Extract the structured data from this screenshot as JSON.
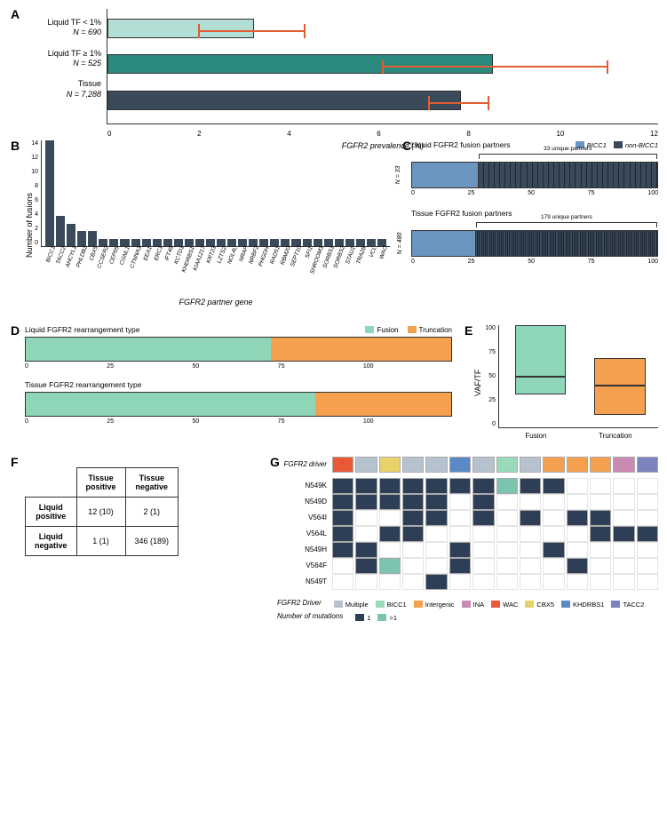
{
  "panel_a": {
    "label": "A",
    "xlabel": "FGFR2 prevalence (%)",
    "xlim": [
      0,
      12
    ],
    "xticks": [
      0,
      2,
      4,
      6,
      8,
      10,
      12
    ],
    "background_color": "#ffffff",
    "error_color": "#e25d33",
    "categories": [
      {
        "label_l1": "Liquid TF < 1%",
        "label_l2": "N = 690",
        "value": 3.2,
        "err_lo": 2.0,
        "err_hi": 4.3,
        "color": "#b3ded5"
      },
      {
        "label_l1": "Liquid TF ≥ 1%",
        "label_l2": "N = 525",
        "value": 8.4,
        "err_lo": 6.0,
        "err_hi": 10.9,
        "color": "#2b8a7e"
      },
      {
        "label_l1": "Tissue",
        "label_l2": "N = 7,288",
        "value": 7.7,
        "err_lo": 7.0,
        "err_hi": 8.3,
        "color": "#3b4a5a"
      }
    ]
  },
  "panel_b": {
    "label": "B",
    "ylabel": "Number of fusions",
    "xlabel": "FGFR2 partner gene",
    "ylim": [
      0,
      14
    ],
    "yticks": [
      0,
      2,
      4,
      6,
      8,
      10,
      12,
      14
    ],
    "bar_color": "#3b4a5a",
    "genes": [
      "BICC1",
      "TACC2",
      "AHCYL1",
      "PHLDB2",
      "CBX5",
      "CCSER2",
      "CEP55",
      "CGNL1",
      "CTNNA3",
      "EEA1",
      "ERC1",
      "IFT46",
      "KCTD1",
      "KHDRBS1",
      "KIAA1217",
      "KRT23",
      "LZTS2",
      "NOL4L",
      "NRAP",
      "NRBF2",
      "PHGDH",
      "RAD51",
      "RBM20",
      "SEPT10",
      "SFI1",
      "SHROOM3",
      "SORBS1",
      "SORBS2",
      "STAU1",
      "TRA2B",
      "VCL",
      "WAC"
    ],
    "values": [
      14,
      4,
      3,
      2,
      2,
      1,
      1,
      1,
      1,
      1,
      1,
      1,
      1,
      1,
      1,
      1,
      1,
      1,
      1,
      1,
      1,
      1,
      1,
      1,
      1,
      1,
      1,
      1,
      1,
      1,
      1,
      1
    ]
  },
  "panel_c": {
    "label": "C",
    "legend": {
      "bicc": "BICC1",
      "nonbicc": "non-BICC1",
      "bicc_color": "#6a95be",
      "nonbicc_color": "#3b4a5a"
    },
    "xticks": [
      0,
      25,
      50,
      75,
      100
    ],
    "subs": [
      {
        "title": "Liquid FGFR2 fusion partners",
        "n_label": "N = 33",
        "bicc_pct": 27,
        "bracket_label": "33 unique partners",
        "n_segments": 33
      },
      {
        "title": "Tissue FGFR2 fusion partners",
        "n_label": "N = 480",
        "bicc_pct": 26,
        "bracket_label": "179 unique partners",
        "n_segments": 90
      }
    ]
  },
  "panel_d": {
    "label": "D",
    "legend": {
      "fusion": "Fusion",
      "trunc": "Truncation",
      "fusion_color": "#8ed6b7",
      "trunc_color": "#f5a04e"
    },
    "xticks": [
      0,
      25,
      50,
      75,
      100
    ],
    "subs": [
      {
        "title": "Liquid FGFR2 rearrangement type",
        "fusion_pct": 65,
        "trunc_pct": 48
      },
      {
        "title": "Tissue FGFR2 rearrangement type",
        "fusion_pct": 77,
        "trunc_pct": 36
      }
    ]
  },
  "panel_e": {
    "label": "E",
    "ylabel": "VAF/TF",
    "ylim": [
      0,
      100
    ],
    "yticks": [
      0,
      25,
      50,
      75,
      100
    ],
    "boxes": [
      {
        "xlabel": "Fusion",
        "q1": 32,
        "median": 50,
        "q3": 100,
        "color": "#8ed6b7"
      },
      {
        "xlabel": "Truncation",
        "q1": 12,
        "median": 42,
        "q3": 68,
        "color": "#f5a04e"
      }
    ]
  },
  "panel_f": {
    "label": "F",
    "cols": [
      "Tissue positive",
      "Tissue negative"
    ],
    "rows": [
      {
        "label": "Liquid positive",
        "cells": [
          "12 (10)",
          "2 (1)"
        ]
      },
      {
        "label": "Liquid negative",
        "cells": [
          "1 (1)",
          "346 (189)"
        ]
      }
    ]
  },
  "panel_g": {
    "label": "G",
    "driver_label": "FGFR2 driver",
    "mutations": [
      "N549K",
      "N549D",
      "V564I",
      "V564L",
      "N549H",
      "V564F",
      "N549T"
    ],
    "driver_legend_title": "FGFR2 Driver",
    "driver_legend": [
      {
        "name": "Multiple",
        "color": "#b7c2cf"
      },
      {
        "name": "BICC1",
        "color": "#9bd9bb"
      },
      {
        "name": "Intergenic",
        "color": "#f5a04e"
      },
      {
        "name": "INA",
        "color": "#c98bb3"
      },
      {
        "name": "WAC",
        "color": "#ea5a36"
      },
      {
        "name": "CBX5",
        "color": "#e9d26a"
      },
      {
        "name": "KHDRBS1",
        "color": "#5a8ac6"
      },
      {
        "name": "TACC2",
        "color": "#7b84bf"
      }
    ],
    "mut_legend_title": "Number of mutations",
    "mut_legend": [
      {
        "name": "1",
        "color": "#2d3e56"
      },
      {
        "name": ">1",
        "color": "#7cc4b0"
      }
    ],
    "n_cols": 14,
    "driver_row": [
      "#ea5a36",
      "#b7c2cf",
      "#e9d26a",
      "#b7c2cf",
      "#b7c2cf",
      "#5a8ac6",
      "#b7c2cf",
      "#9bd9bb",
      "#b7c2cf",
      "#f5a04e",
      "#f5a04e",
      "#f5a04e",
      "#c98bb3",
      "#7b84bf"
    ],
    "driver_star_col": 0,
    "grid": [
      [
        1,
        1,
        1,
        1,
        1,
        1,
        1,
        2,
        1,
        1,
        0,
        0,
        0,
        0
      ],
      [
        1,
        1,
        1,
        1,
        1,
        0,
        1,
        0,
        0,
        0,
        0,
        0,
        0,
        0
      ],
      [
        1,
        0,
        0,
        1,
        1,
        0,
        1,
        0,
        1,
        0,
        1,
        1,
        0,
        0
      ],
      [
        1,
        0,
        1,
        1,
        0,
        0,
        0,
        0,
        0,
        0,
        0,
        1,
        1,
        1
      ],
      [
        1,
        1,
        0,
        0,
        0,
        1,
        0,
        0,
        0,
        1,
        0,
        0,
        0,
        0
      ],
      [
        0,
        1,
        2,
        0,
        0,
        1,
        0,
        0,
        0,
        0,
        1,
        0,
        0,
        0
      ],
      [
        0,
        0,
        0,
        0,
        1,
        0,
        0,
        0,
        0,
        0,
        0,
        0,
        0,
        0
      ]
    ]
  }
}
